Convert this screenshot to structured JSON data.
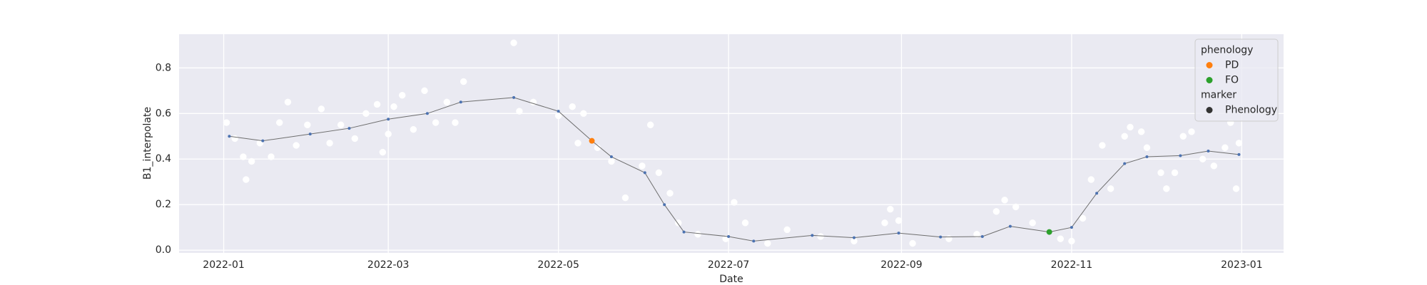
{
  "chart_data": {
    "type": "line",
    "x_label": "Date",
    "y_label": "B1_interpolate",
    "xlim": [
      "2021-12-16",
      "2023-01-16"
    ],
    "xticks": [
      "2022-01",
      "2022-03",
      "2022-05",
      "2022-07",
      "2022-09",
      "2022-11",
      "2023-01"
    ],
    "ylim": [
      -0.012,
      0.948
    ],
    "yticks": [
      {
        "value": 0,
        "label": "0.0"
      },
      0.2,
      0.4,
      0.6,
      0.8
    ],
    "grid": true,
    "background": "#eaeaf2",
    "series": [
      {
        "type": "scatter",
        "color": "#ffffff",
        "x": [
          "2022-01-02",
          "2022-01-05",
          "2022-01-08",
          "2022-01-09",
          "2022-01-11",
          "2022-01-14",
          "2022-01-18",
          "2022-01-21",
          "2022-01-24",
          "2022-01-27",
          "2022-01-31",
          "2022-02-05",
          "2022-02-08",
          "2022-02-12",
          "2022-02-17",
          "2022-02-21",
          "2022-02-25",
          "2022-02-27",
          "2022-03-01",
          "2022-03-03",
          "2022-03-06",
          "2022-03-10",
          "2022-03-14",
          "2022-03-18",
          "2022-03-22",
          "2022-03-25",
          "2022-03-28",
          "2022-04-15",
          "2022-04-17",
          "2022-04-22",
          "2022-05-01",
          "2022-05-06",
          "2022-05-08",
          "2022-05-10",
          "2022-05-15",
          "2022-05-20",
          "2022-05-25",
          "2022-05-31",
          "2022-06-03",
          "2022-06-06",
          "2022-06-10",
          "2022-06-13",
          "2022-06-20",
          "2022-06-30",
          "2022-07-03",
          "2022-07-07",
          "2022-07-15",
          "2022-07-22",
          "2022-08-03",
          "2022-08-15",
          "2022-08-26",
          "2022-08-28",
          "2022-08-31",
          "2022-09-05",
          "2022-09-18",
          "2022-09-28",
          "2022-10-05",
          "2022-10-08",
          "2022-10-12",
          "2022-10-18",
          "2022-10-28",
          "2022-11-01",
          "2022-11-05",
          "2022-11-08",
          "2022-11-12",
          "2022-11-15",
          "2022-11-20",
          "2022-11-22",
          "2022-11-26",
          "2022-11-28",
          "2022-12-03",
          "2022-12-05",
          "2022-12-08",
          "2022-12-11",
          "2022-12-14",
          "2022-12-18",
          "2022-12-22",
          "2022-12-26",
          "2022-12-28",
          "2022-12-30",
          "2022-12-31"
        ],
        "values": [
          0.56,
          0.49,
          0.41,
          0.31,
          0.39,
          0.47,
          0.41,
          0.56,
          0.65,
          0.46,
          0.55,
          0.62,
          0.47,
          0.55,
          0.49,
          0.6,
          0.64,
          0.43,
          0.51,
          0.63,
          0.68,
          0.53,
          0.7,
          0.56,
          0.65,
          0.56,
          0.74,
          0.91,
          0.61,
          0.65,
          0.59,
          0.63,
          0.47,
          0.6,
          0.45,
          0.39,
          0.23,
          0.37,
          0.55,
          0.34,
          0.25,
          0.12,
          0.07,
          0.05,
          0.21,
          0.12,
          0.03,
          0.09,
          0.06,
          0.04,
          0.12,
          0.18,
          0.13,
          0.03,
          0.05,
          0.07,
          0.17,
          0.22,
          0.19,
          0.12,
          0.05,
          0.04,
          0.14,
          0.31,
          0.46,
          0.27,
          0.5,
          0.54,
          0.52,
          0.45,
          0.34,
          0.27,
          0.34,
          0.5,
          0.52,
          0.4,
          0.37,
          0.45,
          0.56,
          0.27,
          0.47
        ]
      },
      {
        "type": "line",
        "color": "#4c72b0",
        "line_color": "#6e6e6e",
        "x": [
          "2022-01-03",
          "2022-01-15",
          "2022-02-01",
          "2022-02-15",
          "2022-03-01",
          "2022-03-15",
          "2022-03-27",
          "2022-04-15",
          "2022-05-01",
          "2022-05-13",
          "2022-05-20",
          "2022-06-01",
          "2022-06-08",
          "2022-06-15",
          "2022-07-01",
          "2022-07-10",
          "2022-07-31",
          "2022-08-15",
          "2022-08-31",
          "2022-09-15",
          "2022-09-30",
          "2022-10-10",
          "2022-10-24",
          "2022-11-01",
          "2022-11-10",
          "2022-11-20",
          "2022-11-28",
          "2022-12-10",
          "2022-12-20",
          "2022-12-31"
        ],
        "values": [
          0.5,
          0.48,
          0.51,
          0.535,
          0.575,
          0.6,
          0.65,
          0.67,
          0.61,
          0.48,
          0.41,
          0.34,
          0.2,
          0.08,
          0.06,
          0.04,
          0.065,
          0.055,
          0.075,
          0.058,
          0.06,
          0.105,
          0.08,
          0.1,
          0.25,
          0.38,
          0.41,
          0.415,
          0.435,
          0.42
        ]
      },
      {
        "type": "scatter",
        "name": "PD",
        "color": "#ff7f0e",
        "x": [
          "2022-05-13"
        ],
        "values": [
          0.48
        ]
      },
      {
        "type": "scatter",
        "name": "FO",
        "color": "#2ca02c",
        "x": [
          "2022-10-24"
        ],
        "values": [
          0.08
        ]
      }
    ],
    "legend": {
      "title": "phenology",
      "location": "upper right",
      "marker_title": "marker",
      "marker_label": "Phenology",
      "marker_color": "#333333"
    }
  }
}
